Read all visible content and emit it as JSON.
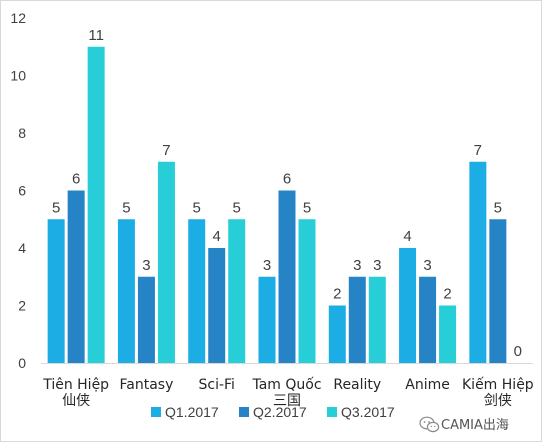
{
  "chart_data": {
    "type": "bar",
    "categories": [
      "Tiên Hiệp\n仙侠",
      "Fantasy",
      "Sci-Fi",
      "Tam Quốc\n三国",
      "Reality",
      "Anime",
      "Kiếm Hiệp\n剑侠"
    ],
    "series": [
      {
        "name": "Q1.2017",
        "color": "#1CADE4",
        "values": [
          5,
          5,
          5,
          3,
          2,
          4,
          7
        ]
      },
      {
        "name": "Q2.2017",
        "color": "#2683C6",
        "values": [
          6,
          3,
          4,
          6,
          3,
          3,
          5
        ]
      },
      {
        "name": "Q3.2017",
        "color": "#27CED7",
        "values": [
          11,
          7,
          5,
          5,
          3,
          2,
          0
        ]
      }
    ],
    "ylim": [
      0,
      12
    ],
    "yticks": [
      0,
      2,
      4,
      6,
      8,
      10,
      12
    ],
    "grid": false,
    "legend_position": "bottom"
  },
  "watermark": {
    "text": "CAMIA出海",
    "icon": "wechat-icon"
  }
}
